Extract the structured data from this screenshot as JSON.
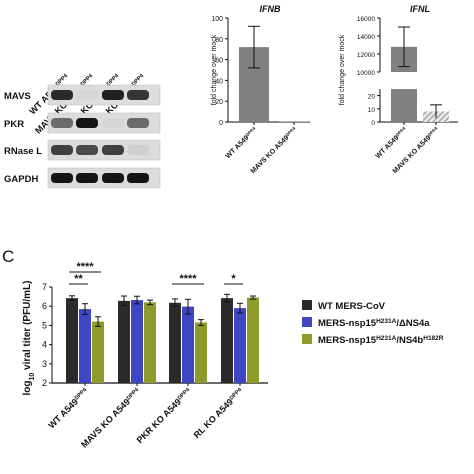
{
  "western_blot": {
    "lanes": [
      "WT A549",
      "MAVS KO A549",
      "PKR KO A549",
      "RL KO A549"
    ],
    "lane_superscript": "DPP4",
    "rows": [
      "MAVS",
      "PKR",
      "RNase L",
      "GAPDH"
    ],
    "intensity": [
      [
        0.85,
        0.05,
        0.9,
        0.8
      ],
      [
        0.55,
        0.95,
        0.05,
        0.55
      ],
      [
        0.75,
        0.7,
        0.75,
        0.08
      ],
      [
        0.95,
        0.95,
        0.95,
        0.95
      ]
    ]
  },
  "panel_c_label": "C",
  "chart_data": [
    {
      "type": "bar",
      "title": "IFNB",
      "ylabel": "fold change over mock",
      "categories": [
        "WT A549",
        "MAVS KO A549"
      ],
      "category_superscript": "DPP4",
      "values": [
        72,
        0.5
      ],
      "errors": [
        20,
        0
      ],
      "ylim": [
        0,
        100
      ],
      "yticks": [
        0,
        20,
        40,
        60,
        80,
        100
      ],
      "color": "#808080"
    },
    {
      "type": "bar",
      "title": "IFNL",
      "ylabel": "fold change over mock",
      "broken_axis": true,
      "categories": [
        "WT A549",
        "MAVS KO A549"
      ],
      "category_superscript": "DPP4",
      "values": [
        12800,
        8
      ],
      "errors": [
        2200,
        5
      ],
      "upper_range": [
        10000,
        16000
      ],
      "upper_ticks": [
        "10000",
        "12000",
        "14000",
        "16000"
      ],
      "lower_range": [
        0,
        25
      ],
      "lower_ticks": [
        "0",
        "10",
        "20"
      ],
      "colors": [
        "#808080",
        "#bbbbbb"
      ]
    },
    {
      "type": "bar",
      "ylabel_parts": [
        "log",
        "10",
        " viral titer (PFU/mL)"
      ],
      "ylim": [
        2,
        7
      ],
      "yticks": [
        2,
        3,
        4,
        5,
        6,
        7
      ],
      "categories": [
        "WT A549",
        "MAVS KO A549",
        "PKR KO A549",
        "RL KO A549"
      ],
      "category_superscript": "DPP4",
      "series": [
        {
          "name": "WT MERS-CoV",
          "color": "#2b2b2b",
          "values": [
            6.42,
            6.28,
            6.18,
            6.42
          ],
          "errors": [
            0.12,
            0.25,
            0.2,
            0.2
          ]
        },
        {
          "name": "MERS-nsp15H231A/ΔNS4a",
          "color": "#3e46c4",
          "values": [
            5.85,
            6.32,
            5.98,
            5.9
          ],
          "errors": [
            0.28,
            0.2,
            0.38,
            0.25
          ]
        },
        {
          "name": "MERS-nsp15H231A/NS4bH182R",
          "color": "#8e9a2a",
          "values": [
            5.2,
            6.2,
            5.15,
            6.45
          ],
          "errors": [
            0.25,
            0.12,
            0.15,
            0.08
          ]
        }
      ],
      "legend_parts": [
        [
          "WT MERS-CoV"
        ],
        [
          "MERS-nsp15",
          "H231A",
          "/ΔNS4a"
        ],
        [
          "MERS-nsp15",
          "H231A",
          "/NS4b",
          "H182R"
        ]
      ],
      "significance": [
        {
          "group": 0,
          "from": 0,
          "to": 2,
          "label": "****"
        },
        {
          "group": 0,
          "from": 0,
          "to": 1,
          "label": "**"
        },
        {
          "group": 2,
          "from": 0,
          "to": 2,
          "label": "****"
        },
        {
          "group": 3,
          "from": 0,
          "to": 1,
          "label": "*"
        }
      ]
    }
  ]
}
